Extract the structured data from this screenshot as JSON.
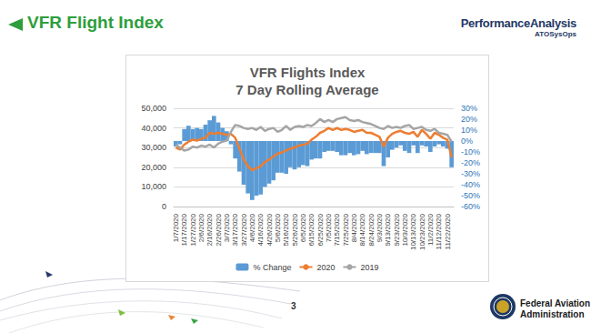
{
  "slide": {
    "header": "VFR Flight Index",
    "logo_title": "PerformanceAnalysis",
    "logo_subtitle": "ATOSysOps",
    "page": 3,
    "footer": [
      "Federal Aviation",
      "Administration"
    ]
  },
  "chart_data": {
    "type": "line",
    "title": "VFR Flights Index",
    "subtitle": "7 Day Rolling Average",
    "categories": [
      "1/7/2020",
      null,
      "1/17/2020",
      null,
      "1/27/2020",
      null,
      "2/6/2020",
      null,
      "2/16/2020",
      null,
      "2/26/2020",
      null,
      "3/7/2020",
      null,
      "3/17/2020",
      null,
      "3/27/2020",
      null,
      "4/6/2020",
      null,
      "4/16/2020",
      null,
      "4/26/2020",
      null,
      "5/6/2020",
      null,
      "5/16/2020",
      null,
      "5/26/2020",
      null,
      "6/5/2020",
      null,
      "6/15/2020",
      null,
      "6/25/2020",
      null,
      "7/5/2020",
      null,
      "7/15/2020",
      null,
      "7/25/2020",
      null,
      "8/4/2020",
      null,
      "8/14/2020",
      null,
      "8/24/2020",
      null,
      "9/3/2020",
      null,
      "9/13/2020",
      null,
      "9/23/2020",
      null,
      "10/3/2020",
      null,
      "10/13/2020",
      null,
      "10/23/2020",
      null,
      "11/2/2020",
      null,
      "11/12/2020",
      null,
      "11/22/2020",
      null
    ],
    "series": [
      {
        "name": "% Change",
        "type": "bar",
        "axis": "y2",
        "color": "#5b9bd5",
        "values": [
          -5,
          -3,
          11,
          14,
          11,
          12,
          11,
          15,
          19,
          23,
          17,
          12,
          9,
          -3,
          -16,
          -28,
          -40,
          -48,
          -54,
          -50,
          -49,
          -42,
          -39,
          -36,
          -29,
          -29,
          -30,
          -24,
          -26,
          -24,
          -22,
          -23,
          -17,
          -16,
          -16,
          -10,
          -9,
          -9,
          -10,
          -13,
          -13,
          -11,
          -13,
          -12,
          -9,
          -12,
          -11,
          -11,
          -11,
          -23,
          -15,
          -8,
          -6,
          -4,
          -9,
          -11,
          -4,
          -11,
          -4,
          -5,
          -10,
          -5,
          -3,
          -5,
          -7,
          -24
        ]
      },
      {
        "name": "2020",
        "color": "#ed7d31",
        "values": [
          30000,
          29000,
          31500,
          33000,
          34000,
          33500,
          34500,
          35000,
          37500,
          37000,
          37500,
          37000,
          36500,
          37000,
          35000,
          29500,
          24000,
          20500,
          18500,
          19500,
          20500,
          22500,
          24000,
          25500,
          27000,
          27500,
          28500,
          29500,
          30000,
          31000,
          31500,
          32000,
          34000,
          35500,
          37500,
          38500,
          40000,
          39000,
          40000,
          39000,
          39500,
          39000,
          38000,
          38500,
          39000,
          37500,
          37500,
          36500,
          35500,
          30500,
          35000,
          37000,
          38000,
          38500,
          37500,
          37000,
          38000,
          35500,
          39000,
          37000,
          34500,
          37500,
          36500,
          35000,
          34000,
          25000
        ]
      },
      {
        "name": "2019",
        "color": "#a5a5a5",
        "values": [
          31500,
          30000,
          28500,
          29000,
          30500,
          30000,
          31000,
          30500,
          31500,
          30000,
          32000,
          33000,
          33500,
          38000,
          41500,
          41000,
          40000,
          39500,
          40000,
          39000,
          40500,
          38500,
          39500,
          40000,
          38000,
          39000,
          41000,
          39000,
          40500,
          41000,
          40500,
          41500,
          41000,
          42500,
          44500,
          43000,
          44000,
          43000,
          44500,
          45000,
          45500,
          44000,
          43500,
          44000,
          43000,
          42500,
          42000,
          41000,
          40000,
          39500,
          41000,
          40000,
          40500,
          40000,
          41000,
          41500,
          39500,
          40000,
          40500,
          39000,
          38500,
          39500,
          37500,
          37000,
          36500,
          33000
        ]
      }
    ],
    "ylim": [
      0,
      50000
    ],
    "yticks": [
      0,
      {
        "value": 10000,
        "label": "10,000"
      },
      {
        "value": 20000,
        "label": "20,000"
      },
      {
        "value": 30000,
        "label": "30,000"
      },
      {
        "value": 40000,
        "label": "40,000"
      },
      {
        "value": 50000,
        "label": "50,000"
      }
    ],
    "y2lim": [
      -60,
      30
    ],
    "y2ticks": [
      {
        "value": -60,
        "label": "-60%"
      },
      {
        "value": -50,
        "label": "-50%"
      },
      {
        "value": -40,
        "label": "-40%"
      },
      {
        "value": -30,
        "label": "-30%"
      },
      {
        "value": -20,
        "label": "-20%"
      },
      {
        "value": -10,
        "label": "-10%"
      },
      {
        "value": 0,
        "label": "0%"
      },
      {
        "value": 10,
        "label": "10%"
      },
      {
        "value": 20,
        "label": "20%"
      },
      {
        "value": 30,
        "label": "30%"
      }
    ],
    "grid": true,
    "legend": "bottom"
  }
}
